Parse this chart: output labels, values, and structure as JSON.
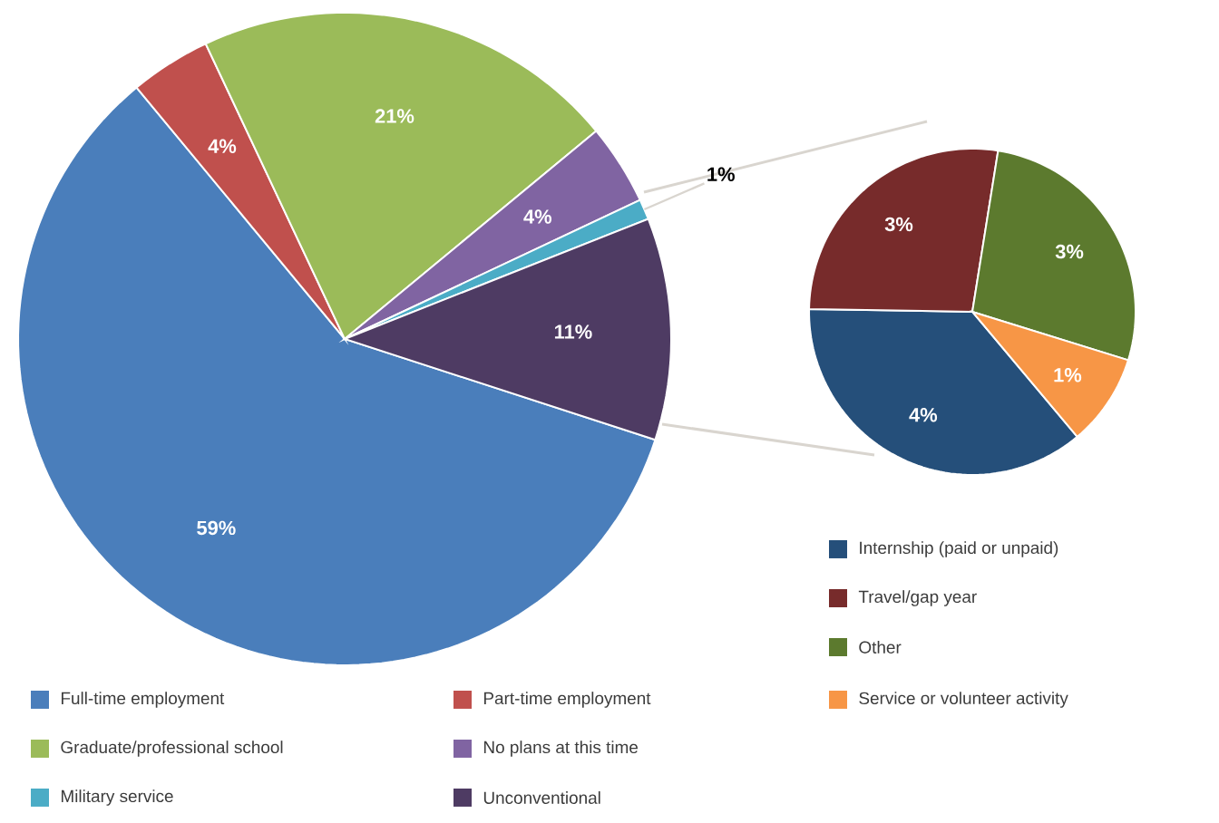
{
  "chart_data": [
    {
      "type": "pie",
      "categories": [
        "Full-time employment",
        "Part-time employment",
        "Graduate/professional school",
        "No plans at this time",
        "Military service",
        "Unconventional"
      ],
      "values": [
        59,
        4,
        21,
        4,
        1,
        11
      ],
      "colors": [
        "#4a7ebb",
        "#c0504d",
        "#9bbb59",
        "#8064a2",
        "#4bacc6",
        "#4e3b63"
      ],
      "value_labels": [
        "59%",
        "4%",
        "21%",
        "4%",
        "1%",
        "11%"
      ],
      "legend": "bottom"
    },
    {
      "type": "pie",
      "categories": [
        "Internship (paid or unpaid)",
        "Travel/gap year",
        "Other",
        "Service or volunteer activity"
      ],
      "values": [
        4,
        3,
        3,
        1
      ],
      "colors": [
        "#254f7a",
        "#772b2b",
        "#5c7a2e",
        "#f79646"
      ],
      "value_labels": [
        "4%",
        "3%",
        "3%",
        "1%"
      ],
      "legend": "bottom"
    }
  ]
}
